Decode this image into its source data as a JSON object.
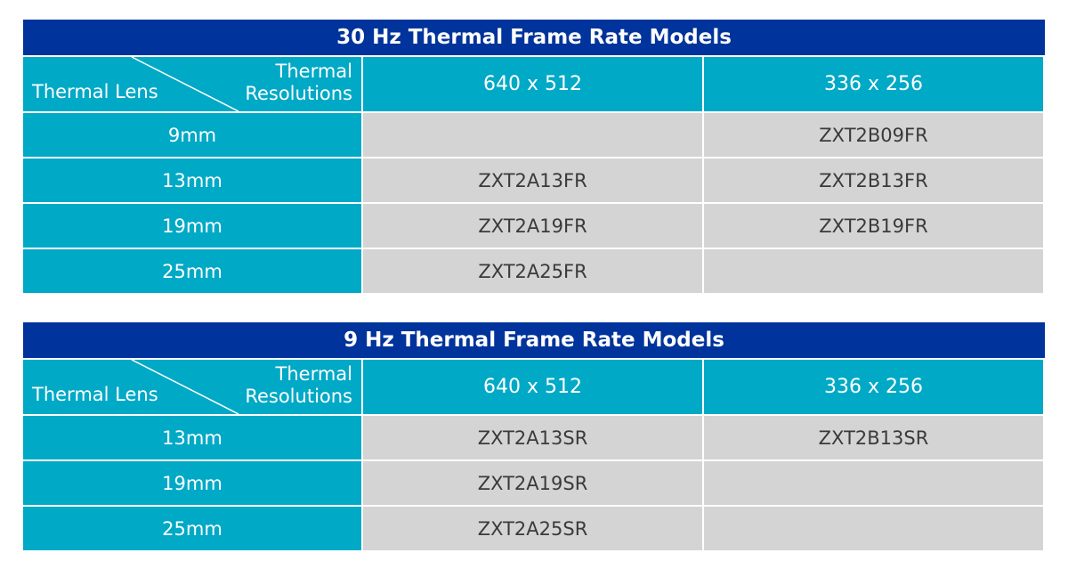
{
  "tables": [
    {
      "title": "30 Hz Thermal Frame Rate Models",
      "corner": {
        "row_header": "Thermal Lens",
        "col_header_line1": "Thermal",
        "col_header_line2": "Resolutions"
      },
      "columns": [
        "640 x 512",
        "336 x 256"
      ],
      "rows": [
        {
          "lens": "9mm",
          "cells": [
            "",
            "ZXT2B09FR"
          ]
        },
        {
          "lens": "13mm",
          "cells": [
            "ZXT2A13FR",
            "ZXT2B13FR"
          ]
        },
        {
          "lens": "19mm",
          "cells": [
            "ZXT2A19FR",
            "ZXT2B19FR"
          ]
        },
        {
          "lens": "25mm",
          "cells": [
            "ZXT2A25FR",
            ""
          ]
        }
      ]
    },
    {
      "title": "9 Hz Thermal Frame Rate Models",
      "corner": {
        "row_header": "Thermal Lens",
        "col_header_line1": "Thermal",
        "col_header_line2": "Resolutions"
      },
      "columns": [
        "640 x 512",
        "336 x 256"
      ],
      "rows": [
        {
          "lens": "13mm",
          "cells": [
            "ZXT2A13SR",
            "ZXT2B13SR"
          ]
        },
        {
          "lens": "19mm",
          "cells": [
            "ZXT2A19SR",
            ""
          ]
        },
        {
          "lens": "25mm",
          "cells": [
            "ZXT2A25SR",
            ""
          ]
        }
      ]
    }
  ],
  "colors": {
    "title_bg": "#00339b",
    "header_bg": "#00a9c6",
    "cell_bg": "#d4d4d4",
    "cell_text": "#3a3a3a"
  }
}
